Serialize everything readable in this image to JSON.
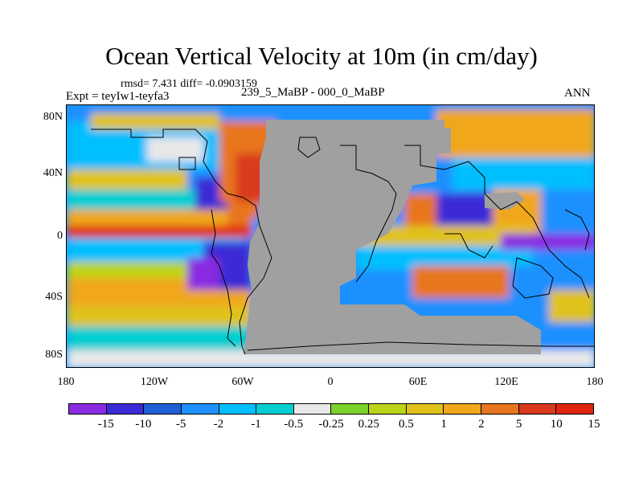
{
  "title": "Ocean Vertical Velocity at 10m (in cm/day)",
  "stats": "rmsd= 7.431 diff= -0.0903159",
  "expt": "Expt = teyIw1-teyfa3",
  "subtitle": "239_5_MaBP - 000_0_MaBP",
  "season": "ANN",
  "lat_labels": [
    "80N",
    "40N",
    "0",
    "40S",
    "80S"
  ],
  "lon_labels": [
    "180",
    "120W",
    "60W",
    "0",
    "60E",
    "120E",
    "180"
  ],
  "colorbar": {
    "colors": [
      "#8a2be2",
      "#3b2bd6",
      "#1f5fd8",
      "#1e90ff",
      "#00bfff",
      "#00ced1",
      "#e8e8e8",
      "#7cd12b",
      "#bcd418",
      "#e0c21a",
      "#f0a71a",
      "#e8761e",
      "#d93a1c",
      "#e0250e"
    ],
    "labels": [
      "-15",
      "-10",
      "-5",
      "-2",
      "-1",
      "-0.5",
      "-0.25",
      "0.25",
      "0.5",
      "1",
      "2",
      "5",
      "10",
      "15"
    ]
  },
  "colors": {
    "land": "#a0a0a0",
    "background": "#ffffff"
  }
}
